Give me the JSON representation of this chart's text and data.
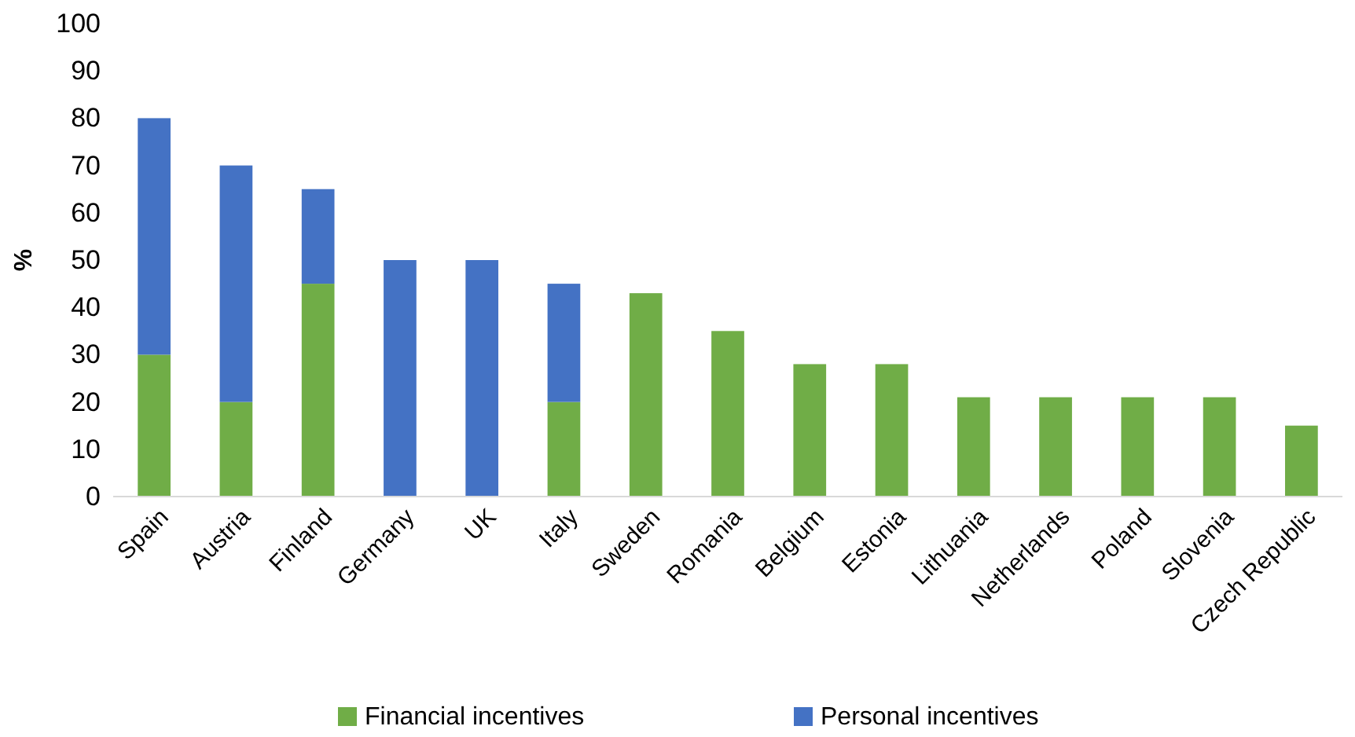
{
  "chart_data": {
    "type": "bar",
    "stacked": true,
    "ylabel": "%",
    "categories": [
      "Spain",
      "Austria",
      "Finland",
      "Germany",
      "UK",
      "Italy",
      "Sweden",
      "Romania",
      "Belgium",
      "Estonia",
      "Lithuania",
      "Netherlands",
      "Poland",
      "Slovenia",
      "Czech Republic"
    ],
    "series": [
      {
        "name": "Financial incentives",
        "color": "#70ad47",
        "values": [
          30,
          20,
          45,
          0,
          0,
          20,
          43,
          35,
          28,
          28,
          21,
          21,
          21,
          21,
          15
        ]
      },
      {
        "name": "Personal incentives",
        "color": "#4472c4",
        "values": [
          50,
          50,
          20,
          50,
          50,
          25,
          0,
          0,
          0,
          0,
          0,
          0,
          0,
          0,
          0
        ]
      }
    ],
    "ylim": [
      0,
      100
    ],
    "yticks": [
      0,
      10,
      20,
      30,
      40,
      50,
      60,
      70,
      80,
      90,
      100
    ],
    "grid": false,
    "legend": "bottom"
  }
}
